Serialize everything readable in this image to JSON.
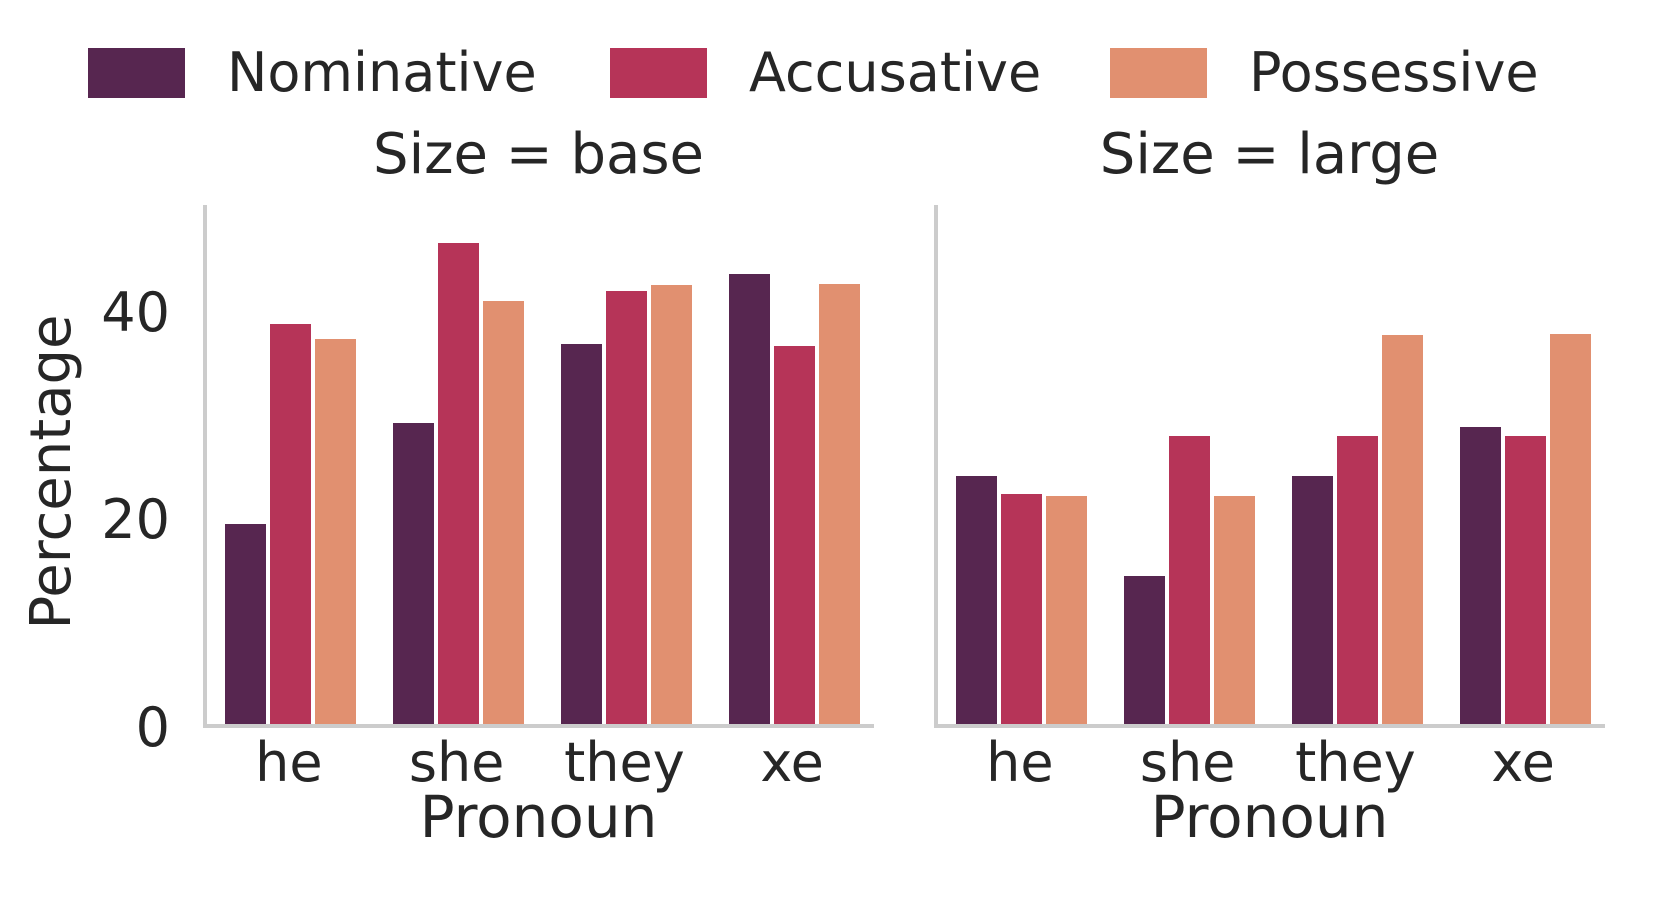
{
  "legend": {
    "items": [
      {
        "label": "Nominative",
        "color": "#572650"
      },
      {
        "label": "Accusative",
        "color": "#b63458"
      },
      {
        "label": "Possessive",
        "color": "#e19070"
      }
    ]
  },
  "axes": {
    "spine_color": "#cccccc",
    "text_color": "#262626"
  },
  "chart_data": [
    {
      "type": "bar",
      "title": "Size = base",
      "categories": [
        "he",
        "she",
        "they",
        "xe"
      ],
      "series": [
        {
          "name": "Nominative",
          "color": "#572650",
          "values": [
            19.3,
            29.0,
            36.6,
            43.4
          ]
        },
        {
          "name": "Accusative",
          "color": "#b63458",
          "values": [
            38.5,
            46.3,
            41.7,
            36.4
          ]
        },
        {
          "name": "Possessive",
          "color": "#e19070",
          "values": [
            37.1,
            40.8,
            42.3,
            42.4
          ]
        }
      ],
      "xlabel": "Pronoun",
      "ylabel": "Percentage",
      "ylim": [
        0,
        50
      ],
      "yticks": [
        0,
        20,
        40
      ],
      "grid": false,
      "legend_position": "top"
    },
    {
      "type": "bar",
      "title": "Size = large",
      "categories": [
        "he",
        "she",
        "they",
        "xe"
      ],
      "series": [
        {
          "name": "Nominative",
          "color": "#572650",
          "values": [
            23.9,
            14.3,
            23.9,
            28.6
          ]
        },
        {
          "name": "Accusative",
          "color": "#b63458",
          "values": [
            22.2,
            27.7,
            27.7,
            27.7
          ]
        },
        {
          "name": "Possessive",
          "color": "#e19070",
          "values": [
            22.0,
            22.0,
            37.5,
            37.6
          ]
        }
      ],
      "xlabel": "Pronoun",
      "ylabel": "Percentage",
      "ylim": [
        0,
        50
      ],
      "yticks": [
        0,
        20,
        40
      ],
      "grid": false,
      "legend_position": "top"
    }
  ]
}
